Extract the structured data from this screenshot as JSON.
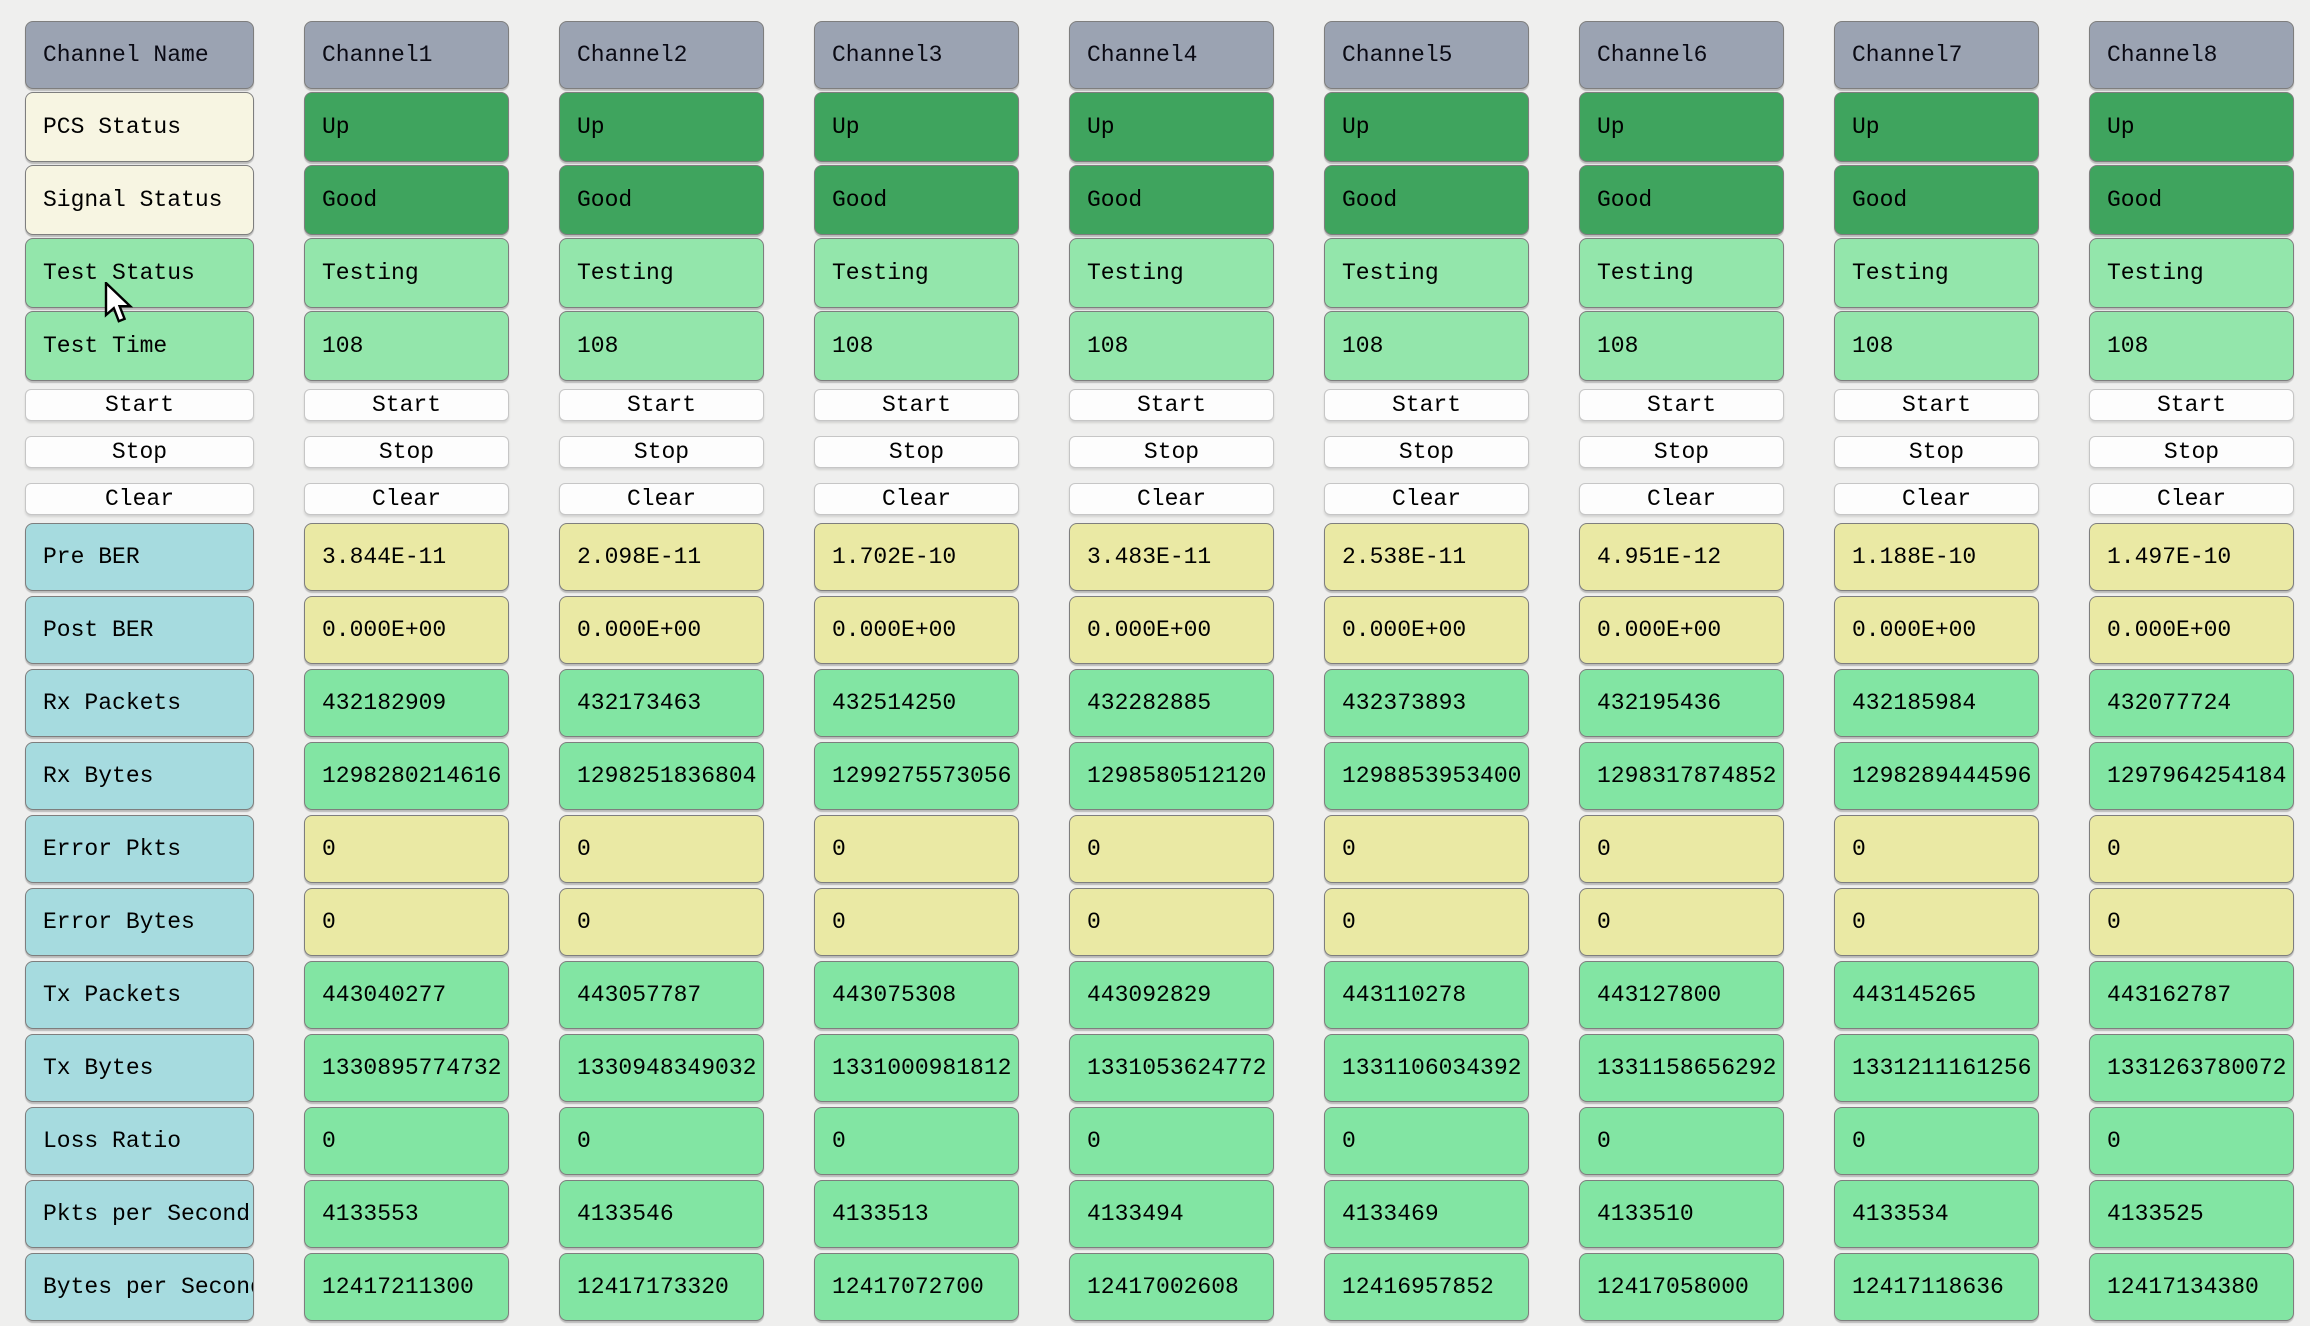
{
  "colors": {
    "bg": "#efefee",
    "header-bg": "#9ba3b2",
    "dark-green": "#3fa45e",
    "light-green": "#93e6ab",
    "value-green": "#82e5a3",
    "yellow": "#eae9a4",
    "cyan": "#a6dbdf",
    "cream": "#f7f5e2",
    "button-bg": "#fdfdfd",
    "cell-border": "#7e7e7e"
  },
  "grid": {
    "label_column": {
      "header": "Channel Name",
      "rows": [
        {
          "label": "PCS Status"
        },
        {
          "label": "Signal Status"
        },
        {
          "label": "Test Status"
        },
        {
          "label": "Test Time"
        },
        {
          "label": "Start"
        },
        {
          "label": "Stop"
        },
        {
          "label": "Clear"
        },
        {
          "label": "Pre BER"
        },
        {
          "label": "Post BER"
        },
        {
          "label": "Rx Packets"
        },
        {
          "label": "Rx Bytes"
        },
        {
          "label": "Error Pkts"
        },
        {
          "label": "Error Bytes"
        },
        {
          "label": "Tx Packets"
        },
        {
          "label": "Tx Bytes"
        },
        {
          "label": "Loss Ratio"
        },
        {
          "label": "Pkts per Second"
        },
        {
          "label": "Bytes per Second"
        }
      ]
    },
    "channels": [
      {
        "name": "Channel1",
        "pcs_status": "Up",
        "signal_status": "Good",
        "test_status": "Testing",
        "test_time": "108",
        "buttons": [
          "Start",
          "Stop",
          "Clear"
        ],
        "pre_ber": "3.844E-11",
        "post_ber": "0.000E+00",
        "rx_packets": "432182909",
        "rx_bytes": "1298280214616",
        "error_pkts": "0",
        "error_bytes": "0",
        "tx_packets": "443040277",
        "tx_bytes": "1330895774732",
        "loss_ratio": "0",
        "pkts_per_second": "4133553",
        "bytes_per_second": "12417211300"
      },
      {
        "name": "Channel2",
        "pcs_status": "Up",
        "signal_status": "Good",
        "test_status": "Testing",
        "test_time": "108",
        "buttons": [
          "Start",
          "Stop",
          "Clear"
        ],
        "pre_ber": "2.098E-11",
        "post_ber": "0.000E+00",
        "rx_packets": "432173463",
        "rx_bytes": "1298251836804",
        "error_pkts": "0",
        "error_bytes": "0",
        "tx_packets": "443057787",
        "tx_bytes": "1330948349032",
        "loss_ratio": "0",
        "pkts_per_second": "4133546",
        "bytes_per_second": "12417173320"
      },
      {
        "name": "Channel3",
        "pcs_status": "Up",
        "signal_status": "Good",
        "test_status": "Testing",
        "test_time": "108",
        "buttons": [
          "Start",
          "Stop",
          "Clear"
        ],
        "pre_ber": "1.702E-10",
        "post_ber": "0.000E+00",
        "rx_packets": "432514250",
        "rx_bytes": "1299275573056",
        "error_pkts": "0",
        "error_bytes": "0",
        "tx_packets": "443075308",
        "tx_bytes": "1331000981812",
        "loss_ratio": "0",
        "pkts_per_second": "4133513",
        "bytes_per_second": "12417072700"
      },
      {
        "name": "Channel4",
        "pcs_status": "Up",
        "signal_status": "Good",
        "test_status": "Testing",
        "test_time": "108",
        "buttons": [
          "Start",
          "Stop",
          "Clear"
        ],
        "pre_ber": "3.483E-11",
        "post_ber": "0.000E+00",
        "rx_packets": "432282885",
        "rx_bytes": "1298580512120",
        "error_pkts": "0",
        "error_bytes": "0",
        "tx_packets": "443092829",
        "tx_bytes": "1331053624772",
        "loss_ratio": "0",
        "pkts_per_second": "4133494",
        "bytes_per_second": "12417002608"
      },
      {
        "name": "Channel5",
        "pcs_status": "Up",
        "signal_status": "Good",
        "test_status": "Testing",
        "test_time": "108",
        "buttons": [
          "Start",
          "Stop",
          "Clear"
        ],
        "pre_ber": "2.538E-11",
        "post_ber": "0.000E+00",
        "rx_packets": "432373893",
        "rx_bytes": "1298853953400",
        "error_pkts": "0",
        "error_bytes": "0",
        "tx_packets": "443110278",
        "tx_bytes": "1331106034392",
        "loss_ratio": "0",
        "pkts_per_second": "4133469",
        "bytes_per_second": "12416957852"
      },
      {
        "name": "Channel6",
        "pcs_status": "Up",
        "signal_status": "Good",
        "test_status": "Testing",
        "test_time": "108",
        "buttons": [
          "Start",
          "Stop",
          "Clear"
        ],
        "pre_ber": "4.951E-12",
        "post_ber": "0.000E+00",
        "rx_packets": "432195436",
        "rx_bytes": "1298317874852",
        "error_pkts": "0",
        "error_bytes": "0",
        "tx_packets": "443127800",
        "tx_bytes": "1331158656292",
        "loss_ratio": "0",
        "pkts_per_second": "4133510",
        "bytes_per_second": "12417058000"
      },
      {
        "name": "Channel7",
        "pcs_status": "Up",
        "signal_status": "Good",
        "test_status": "Testing",
        "test_time": "108",
        "buttons": [
          "Start",
          "Stop",
          "Clear"
        ],
        "pre_ber": "1.188E-10",
        "post_ber": "0.000E+00",
        "rx_packets": "432185984",
        "rx_bytes": "1298289444596",
        "error_pkts": "0",
        "error_bytes": "0",
        "tx_packets": "443145265",
        "tx_bytes": "1331211161256",
        "loss_ratio": "0",
        "pkts_per_second": "4133534",
        "bytes_per_second": "12417118636"
      },
      {
        "name": "Channel8",
        "pcs_status": "Up",
        "signal_status": "Good",
        "test_status": "Testing",
        "test_time": "108",
        "buttons": [
          "Start",
          "Stop",
          "Clear"
        ],
        "pre_ber": "1.497E-10",
        "post_ber": "0.000E+00",
        "rx_packets": "432077724",
        "rx_bytes": "1297964254184",
        "error_pkts": "0",
        "error_bytes": "0",
        "tx_packets": "443162787",
        "tx_bytes": "1331263780072",
        "loss_ratio": "0",
        "pkts_per_second": "4133525",
        "bytes_per_second": "12417134380"
      }
    ]
  }
}
